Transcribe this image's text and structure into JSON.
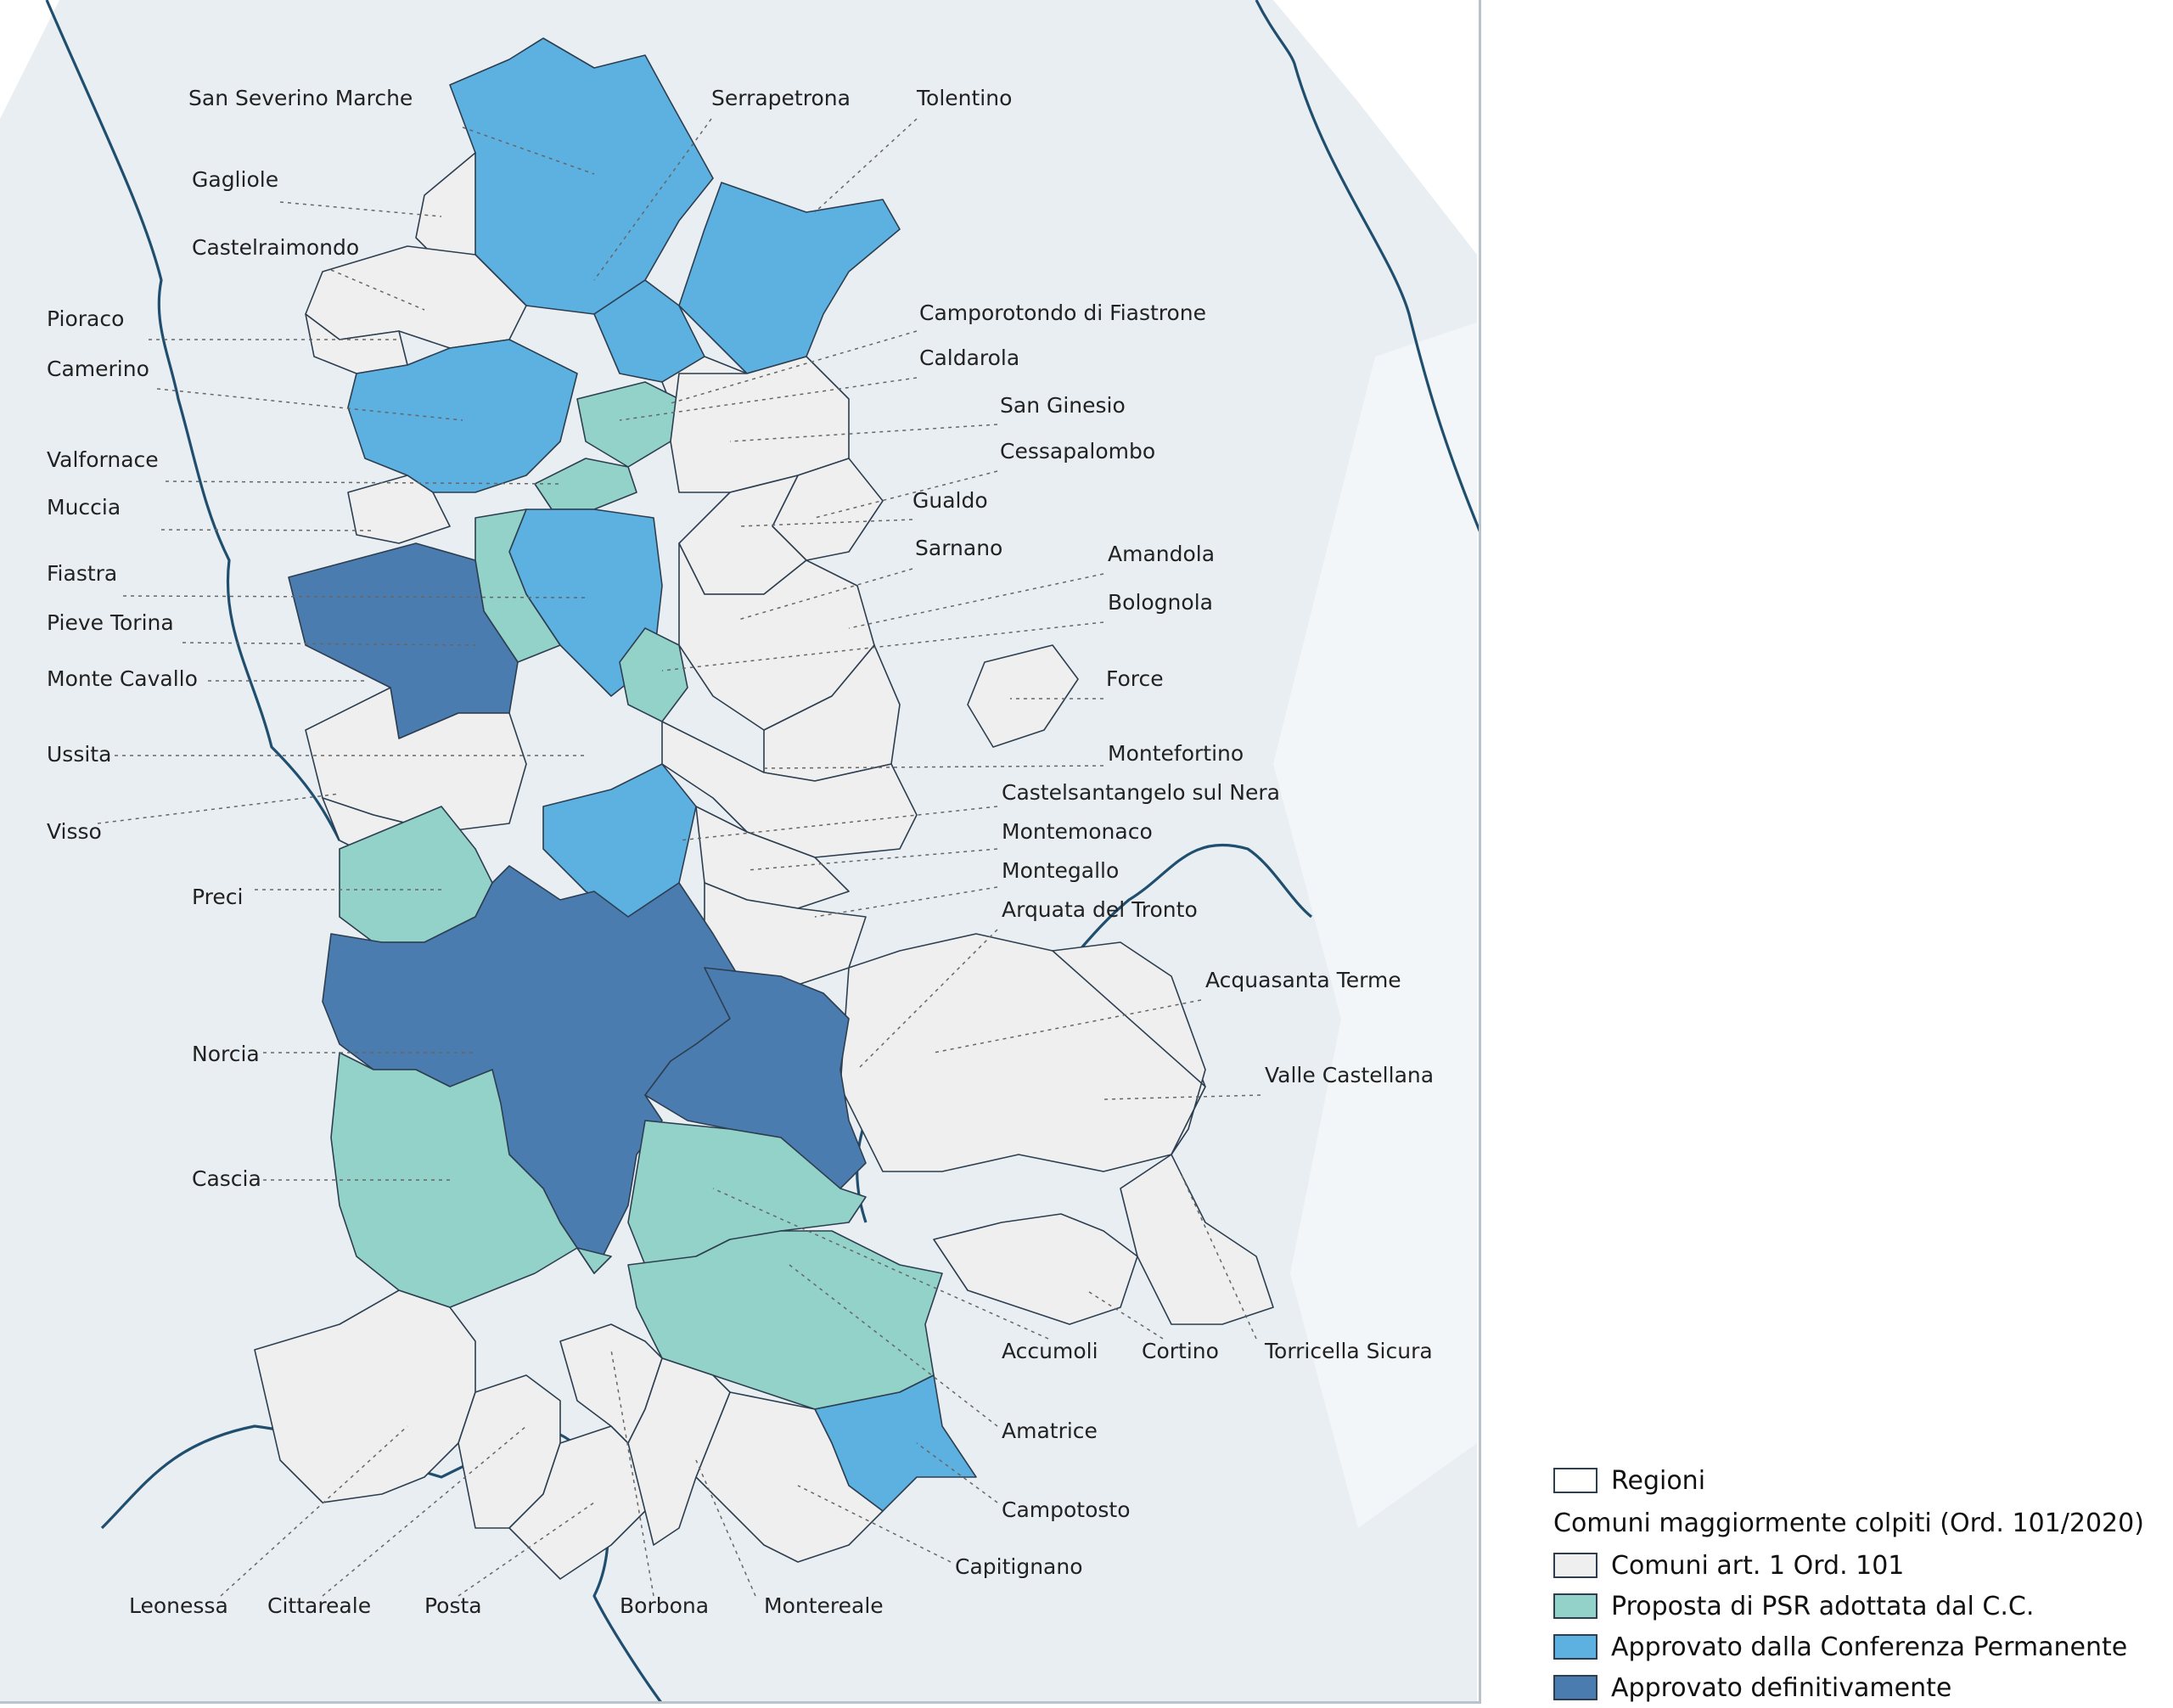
{
  "colors": {
    "art1": "#efefef",
    "psr": "#93d2c8",
    "conferenza": "#5cb1e0",
    "definitivo": "#4b7cb0",
    "background_land": "#e9eef2",
    "region_border": "#1f4e6e"
  },
  "labels": [
    {
      "name": "San Severino Marche",
      "category": "conferenza"
    },
    {
      "name": "Serrapetrona",
      "category": "conferenza"
    },
    {
      "name": "Tolentino",
      "category": "conferenza"
    },
    {
      "name": "Gagliole",
      "category": "art1"
    },
    {
      "name": "Castelraimondo",
      "category": "art1"
    },
    {
      "name": "Camporotondo di Fiastrone",
      "category": "art1"
    },
    {
      "name": "Pioraco",
      "category": "art1"
    },
    {
      "name": "Caldarola",
      "category": "psr"
    },
    {
      "name": "Camerino",
      "category": "conferenza"
    },
    {
      "name": "San Ginesio",
      "category": "art1"
    },
    {
      "name": "Cessapalombo",
      "category": "art1"
    },
    {
      "name": "Valfornace",
      "category": "psr"
    },
    {
      "name": "Gualdo",
      "category": "art1"
    },
    {
      "name": "Muccia",
      "category": "art1"
    },
    {
      "name": "Sarnano",
      "category": "art1"
    },
    {
      "name": "Amandola",
      "category": "art1"
    },
    {
      "name": "Fiastra",
      "category": "conferenza"
    },
    {
      "name": "Bolognola",
      "category": "psr"
    },
    {
      "name": "Pieve Torina",
      "category": "psr"
    },
    {
      "name": "Force",
      "category": "art1"
    },
    {
      "name": "Monte Cavallo",
      "category": "definitivo"
    },
    {
      "name": "Montefortino",
      "category": "art1"
    },
    {
      "name": "Ussita",
      "category": "art1"
    },
    {
      "name": "Castelsantangelo sul Nera",
      "category": "conferenza"
    },
    {
      "name": "Visso",
      "category": "art1"
    },
    {
      "name": "Montemonaco",
      "category": "art1"
    },
    {
      "name": "Montegallo",
      "category": "art1"
    },
    {
      "name": "Preci",
      "category": "psr"
    },
    {
      "name": "Arquata del Tronto",
      "category": "definitivo"
    },
    {
      "name": "Acquasanta Terme",
      "category": "art1"
    },
    {
      "name": "Norcia",
      "category": "definitivo"
    },
    {
      "name": "Valle Castellana",
      "category": "art1"
    },
    {
      "name": "Cascia",
      "category": "psr"
    },
    {
      "name": "Accumoli",
      "category": "psr"
    },
    {
      "name": "Cortino",
      "category": "art1"
    },
    {
      "name": "Torricella Sicura",
      "category": "art1"
    },
    {
      "name": "Amatrice",
      "category": "psr"
    },
    {
      "name": "Campotosto",
      "category": "conferenza"
    },
    {
      "name": "Capitignano",
      "category": "art1"
    },
    {
      "name": "Leonessa",
      "category": "art1"
    },
    {
      "name": "Cittareale",
      "category": "art1"
    },
    {
      "name": "Posta",
      "category": "art1"
    },
    {
      "name": "Borbona",
      "category": "art1"
    },
    {
      "name": "Montereale",
      "category": "art1"
    }
  ],
  "legend": {
    "regioni": "Regioni",
    "title": "Comuni maggiormente colpiti (Ord. 101/2020)",
    "items": [
      {
        "key": "art1",
        "label": "Comuni art. 1 Ord. 101"
      },
      {
        "key": "psr",
        "label": "Proposta di PSR adottata dal C.C."
      },
      {
        "key": "conferenza",
        "label": "Approvato dalla Conferenza Permanente"
      },
      {
        "key": "definitivo",
        "label": "Approvato definitivamente"
      }
    ]
  }
}
